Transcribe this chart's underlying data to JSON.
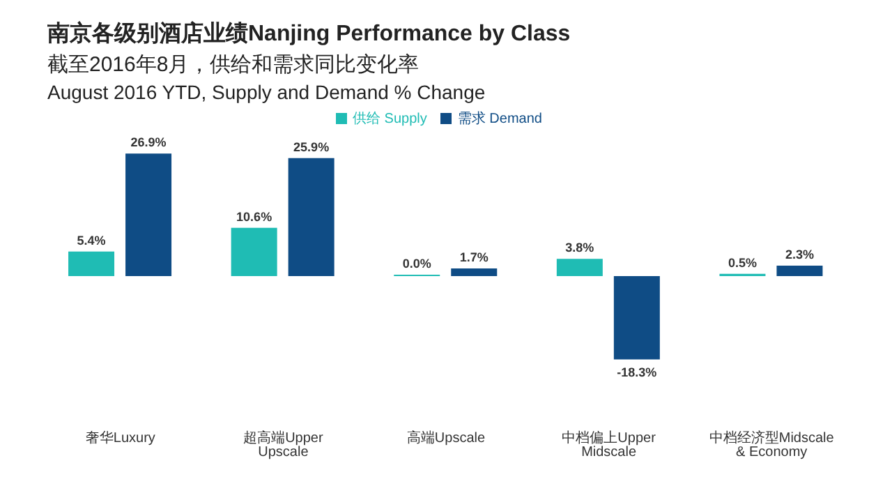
{
  "chart_data": {
    "type": "bar",
    "title": "南京各级别酒店业绩Nanjing Performance by Class",
    "subtitle": "截至2016年8月，供给和需求同比变化率\nAugust 2016 YTD, Supply and Demand % Change",
    "categories": [
      "奢华Luxury",
      "超高端Upper Upscale",
      "高端Upscale",
      "中档偏上Upper Midscale",
      "中档经济型Midscale & Economy"
    ],
    "series": [
      {
        "name": "供给 Supply",
        "color": "#1fbcb4",
        "values": [
          5.4,
          10.6,
          0.0,
          3.8,
          0.5
        ],
        "value_labels": [
          "5.4%",
          "10.6%",
          "0.0%",
          "3.8%",
          "0.5%"
        ]
      },
      {
        "name": "需求 Demand",
        "color": "#0f4c85",
        "values": [
          26.9,
          25.9,
          1.7,
          -18.3,
          2.3
        ],
        "value_labels": [
          "26.9%",
          "25.9%",
          "1.7%",
          "-18.3%",
          "2.3%"
        ]
      }
    ],
    "legend": "top"
  }
}
